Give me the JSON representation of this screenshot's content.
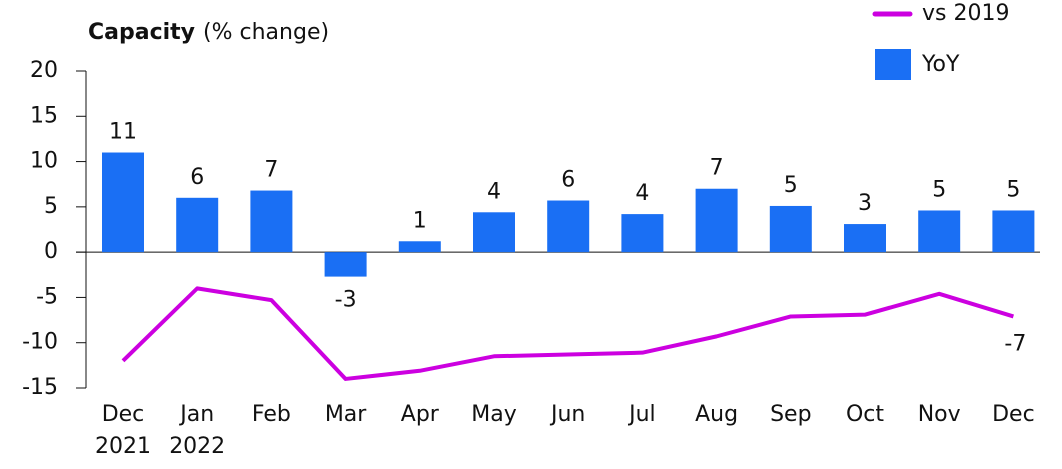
{
  "chart_data": {
    "type": "bar",
    "title": "Capacity",
    "subtitle": "(% change)",
    "categories": [
      "Dec 2021",
      "Jan 2022",
      "Feb",
      "Mar",
      "Apr",
      "May",
      "Jun",
      "Jul",
      "Aug",
      "Sep",
      "Oct",
      "Nov",
      "Dec"
    ],
    "series": [
      {
        "name": "YoY",
        "type": "bar",
        "color": "#1a6ff4",
        "values": [
          11,
          6,
          6.8,
          -2.7,
          1.2,
          4.4,
          5.7,
          4.2,
          7,
          5.1,
          3.1,
          4.6,
          4.6
        ],
        "value_labels": [
          "11",
          "6",
          "7",
          "-3",
          "1",
          "4",
          "6",
          "4",
          "7",
          "5",
          "3",
          "5",
          "5"
        ]
      },
      {
        "name": "vs 2019",
        "type": "line",
        "color": "#cc00e0",
        "values": [
          -12,
          -4,
          -5.3,
          -14,
          -13.1,
          -11.5,
          -11.3,
          -11.1,
          -9.3,
          -7.1,
          -6.9,
          -4.6,
          -7.1
        ],
        "value_labels": [
          null,
          null,
          null,
          null,
          null,
          null,
          null,
          null,
          null,
          null,
          null,
          null,
          "-7"
        ]
      }
    ],
    "ylim": [
      -15,
      20
    ],
    "yticks": [
      -15,
      -10,
      -5,
      0,
      5,
      10,
      15,
      20
    ]
  }
}
